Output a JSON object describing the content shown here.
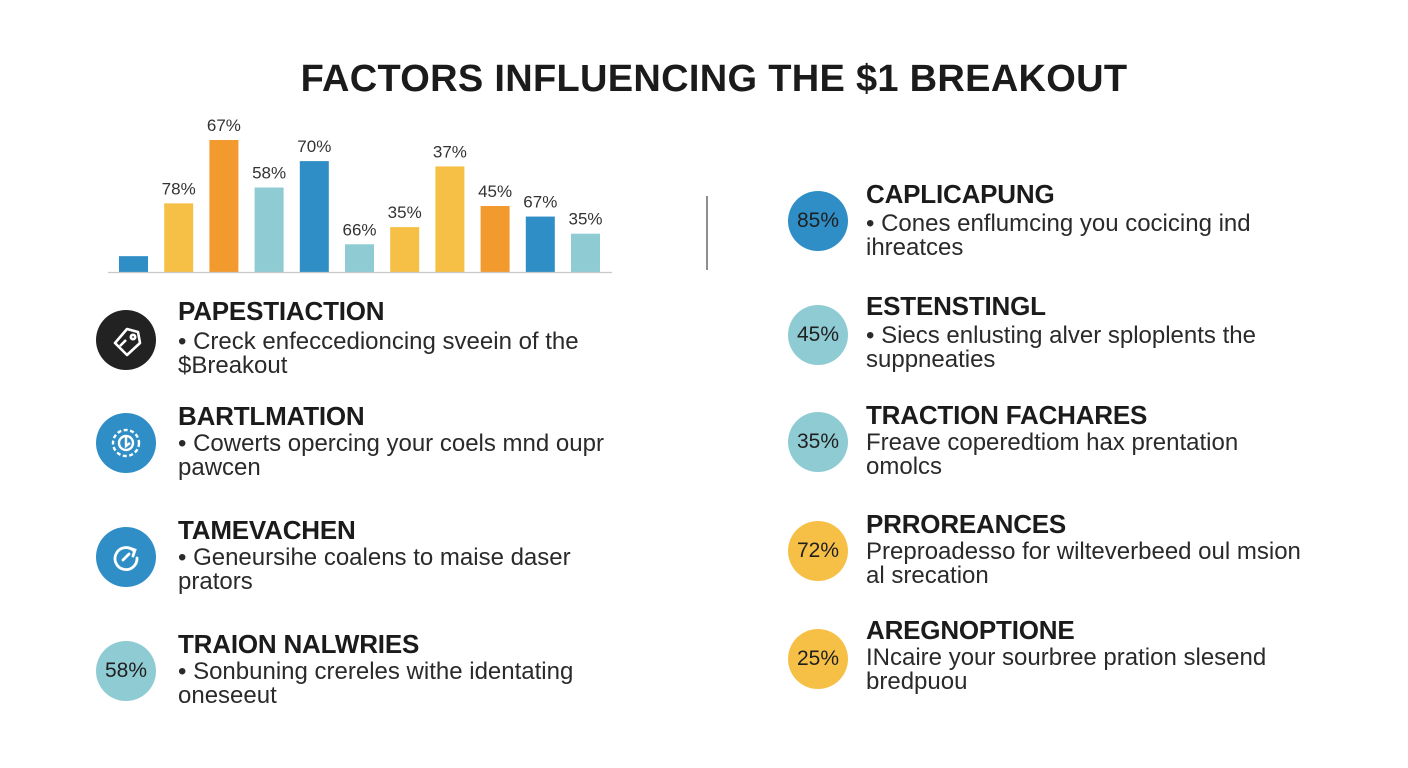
{
  "title": "FACTORS INFLUENCING THE $1 BREAKOUT",
  "colors": {
    "gold": "#f6c046",
    "orange": "#f29a2e",
    "light_blue": "#8fcbd3",
    "blue": "#2e8ec5",
    "dark": "#222222"
  },
  "chart_data": {
    "type": "bar",
    "ylim": [
      0,
      100
    ],
    "grid": false,
    "bars": [
      {
        "label": "",
        "value": 12,
        "color": "#2e8ec5"
      },
      {
        "label": "78%",
        "value": 52,
        "color": "#f6c046"
      },
      {
        "label": "67%",
        "value": 100,
        "color": "#f29a2e"
      },
      {
        "label": "58%",
        "value": 64,
        "color": "#8fcbd3"
      },
      {
        "label": "70%",
        "value": 84,
        "color": "#2e8ec5"
      },
      {
        "label": "66%",
        "value": 21,
        "color": "#8fcbd3"
      },
      {
        "label": "35%",
        "value": 34,
        "color": "#f6c046"
      },
      {
        "label": "37%",
        "value": 80,
        "color": "#f6c046"
      },
      {
        "label": "45%",
        "value": 50,
        "color": "#f29a2e"
      },
      {
        "label": "67%",
        "value": 42,
        "color": "#2e8ec5"
      },
      {
        "label": "35%",
        "value": 29,
        "color": "#8fcbd3"
      }
    ]
  },
  "left_factors": [
    {
      "title": "PAPESTIACTION",
      "desc": "• Creck enfeccedioncing sveein of the $Breakout",
      "icon": "tag-icon",
      "badge_color": "#222222"
    },
    {
      "title": "BARTLMATION",
      "desc": "• Cowerts opercing your coels mnd oupr pawcen",
      "icon": "gear-icon",
      "badge_color": "#2e8ec5"
    },
    {
      "title": "TAMEVACHEN",
      "desc": "• Geneursihe coalens to maise daser prators",
      "icon": "refresh-icon",
      "badge_color": "#2e8ec5"
    },
    {
      "title": "TRAION NALWRIES",
      "desc": "• Sonbuning crereles withe identating oneseeut",
      "badge_text": "58%",
      "badge_color": "#8fcbd3"
    }
  ],
  "right_factors": [
    {
      "title": "CAPLICAPUNG",
      "desc": "• Cones enflumcing you cocicing ind ihreatces",
      "badge_text": "85%",
      "badge_color": "#2e8ec5"
    },
    {
      "title": "ESTENSTINGL",
      "desc": "• Siecs enlusting alver sploplents the suppneaties",
      "badge_text": "45%",
      "badge_color": "#8fcbd3"
    },
    {
      "title": "TRACTION FACHARES",
      "desc": "Freave coperedtiom hax prentation omolcs",
      "badge_text": "35%",
      "badge_color": "#8fcbd3"
    },
    {
      "title": "PRROREANCES",
      "desc": "Preproadesso for wilteverbeed oul msion al srecation",
      "badge_text": "72%",
      "badge_color": "#f6c046"
    },
    {
      "title": "AREGNOPTIONE",
      "desc": "INcaire your sourbree pration slesend bredpuou",
      "badge_text": "25%",
      "badge_color": "#f6c046"
    }
  ]
}
